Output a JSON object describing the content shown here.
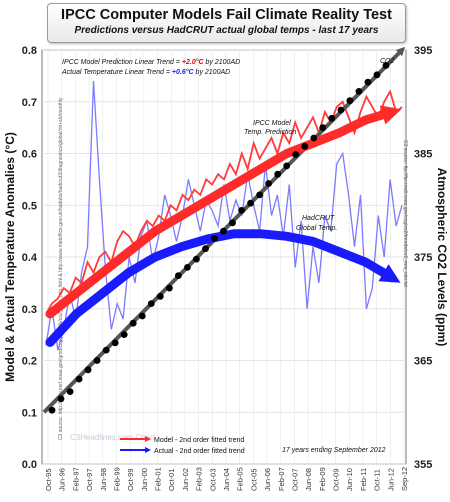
{
  "title": "IPCC Computer Models Fail Climate Reality Test",
  "subtitle": "Predictions versus HadCRUT actual global temps - last 17 years",
  "chart_data": {
    "type": "line",
    "ylabel": "Model & Actual Temperature Anomalies (°C)",
    "y2label": "Atmospheric CO2 Levels (ppm)",
    "ylim": [
      0.0,
      0.8
    ],
    "y2lim": [
      355,
      395
    ],
    "yticks": [
      "0.0",
      "0.1",
      "0.2",
      "0.3",
      "0.4",
      "0.5",
      "0.6",
      "0.7",
      "0.8"
    ],
    "y2ticks": [
      "355",
      "365",
      "375",
      "385",
      "395"
    ],
    "xticks": [
      "Oct-95",
      "Jun-96",
      "Feb-97",
      "Oct-97",
      "Jun-98",
      "Feb-99",
      "Oct-99",
      "Jun-00",
      "Feb-01",
      "Oct-01",
      "Jun-02",
      "Feb-03",
      "Oct-03",
      "Jun-04",
      "Feb-05",
      "Oct-05",
      "Jun-06",
      "Feb-07",
      "Oct-07",
      "Jun-08",
      "Feb-09",
      "Oct-09",
      "Jun-10",
      "Feb-11",
      "Oct-11",
      "Jun-12",
      "Sep-12"
    ],
    "grid": true,
    "model_text_1": "IPCC Model Prediction Linear Trend = ",
    "model_rate": "+2.0°C",
    "model_text_2": " by 2100AD",
    "actual_text_1": "Actual Temperature Linear Trend = ",
    "actual_rate": "+0.6°C",
    "actual_text_2": " by 2100AD",
    "label_co2": "CO2",
    "label_ipcc_1": "IPCC Model",
    "label_ipcc_2": "Temp. Prediction",
    "label_hadcrut_1": "HadCRUT",
    "label_hadcrut_2": "Global Temp.",
    "legend": [
      {
        "label": "Model - 2nd order fitted trend",
        "color": "#ff2a2a"
      },
      {
        "label": "Actual - 2nd order fitted trend",
        "color": "#1a1aff"
      }
    ],
    "footer": "17 years ending September 2012",
    "watermark": "C3Headlines.com Chart",
    "side_note_left": "C3 source: http://www.esrl.noaa.gov/gmd/ccgg/trends/co2_data_mlo.html & http://www.metoffice.gov.uk/hadobs/hadcrut3/diagnostics/global/nh+sh/monthly",
    "side_note_right": "C3 source: ftp://ftp.cmdl.noaa.gov/ccg/co2/trends/co2_mm_mlo.txt",
    "series": [
      {
        "name": "IPCC Model Temp. Prediction",
        "color": "#ff3b3b",
        "values": [
          0.29,
          0.31,
          0.32,
          0.34,
          0.33,
          0.36,
          0.35,
          0.39,
          0.37,
          0.4,
          0.41,
          0.39,
          0.43,
          0.45,
          0.44,
          0.42,
          0.45,
          0.47,
          0.46,
          0.48,
          0.47,
          0.5,
          0.49,
          0.52,
          0.51,
          0.53,
          0.52,
          0.55,
          0.54,
          0.56,
          0.55,
          0.58,
          0.56,
          0.6,
          0.57,
          0.62,
          0.59,
          0.61,
          0.63,
          0.6,
          0.64,
          0.62,
          0.66,
          0.63,
          0.65,
          0.67,
          0.64,
          0.68,
          0.66,
          0.69,
          0.7,
          0.67,
          0.64,
          0.68,
          0.71,
          0.69,
          0.67,
          0.7,
          0.72,
          0.68,
          0.69
        ]
      },
      {
        "name": "HadCRUT Global Temp.",
        "color": "#7b7bff",
        "values": [
          0.23,
          0.3,
          0.22,
          0.26,
          0.33,
          0.28,
          0.37,
          0.42,
          0.74,
          0.55,
          0.38,
          0.26,
          0.31,
          0.28,
          0.4,
          0.35,
          0.44,
          0.47,
          0.39,
          0.44,
          0.52,
          0.48,
          0.43,
          0.48,
          0.55,
          0.5,
          0.45,
          0.51,
          0.49,
          0.46,
          0.54,
          0.47,
          0.51,
          0.48,
          0.56,
          0.5,
          0.45,
          0.58,
          0.48,
          0.52,
          0.44,
          0.54,
          0.38,
          0.47,
          0.3,
          0.42,
          0.35,
          0.48,
          0.45,
          0.58,
          0.6,
          0.52,
          0.42,
          0.52,
          0.3,
          0.34,
          0.48,
          0.4,
          0.55,
          0.46,
          0.5
        ]
      },
      {
        "name": "CO2",
        "color": "#000000",
        "values": [
          360.2,
          361.3,
          362.0,
          363.2,
          364.1,
          365.0,
          366.0,
          366.7,
          367.5,
          368.6,
          369.3,
          370.5,
          371.2,
          372.0,
          373.2,
          374.0,
          374.8,
          375.8,
          376.8,
          377.5,
          378.3,
          379.5,
          380.2,
          381.0,
          382.1,
          383.0,
          383.8,
          384.9,
          385.7,
          386.5,
          387.5,
          388.4,
          389.2,
          390.1,
          391.0,
          391.9,
          392.6,
          393.5
        ]
      }
    ],
    "trend_model": [
      0.29,
      0.33,
      0.37,
      0.41,
      0.45,
      0.48,
      0.51,
      0.54,
      0.57,
      0.6,
      0.62,
      0.64,
      0.665,
      0.68
    ],
    "trend_actual": [
      0.235,
      0.29,
      0.33,
      0.37,
      0.4,
      0.42,
      0.435,
      0.445,
      0.445,
      0.44,
      0.43,
      0.41,
      0.39,
      0.36
    ],
    "trend_co2": [
      360.0,
      395.0
    ]
  }
}
